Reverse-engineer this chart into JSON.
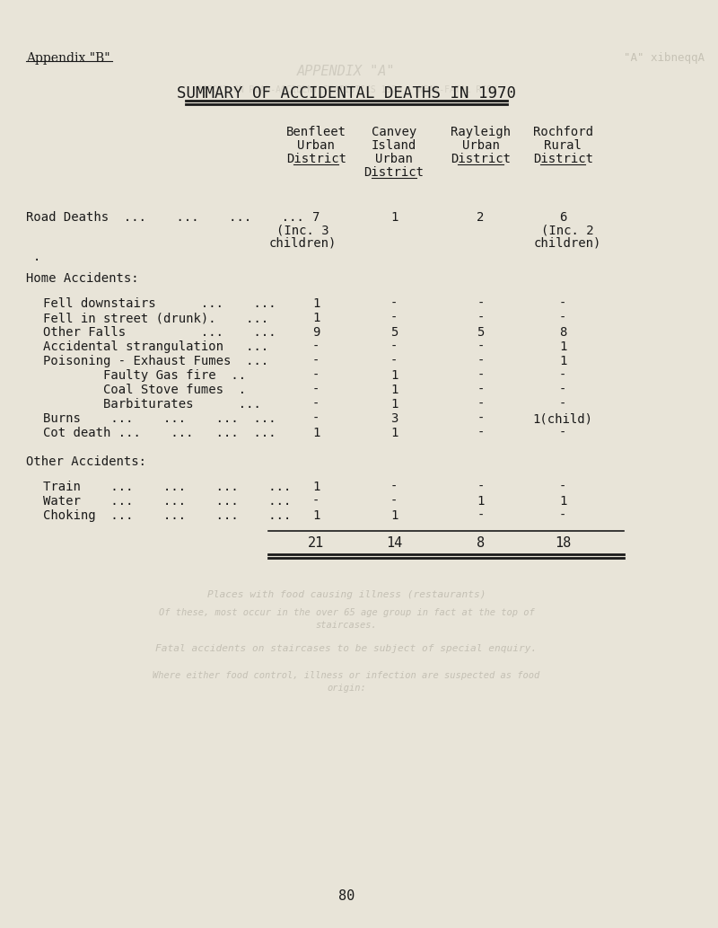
{
  "title": "SUMMARY OF ACCIDENTAL DEATHS IN 1970",
  "appendix_label": "Appendix \"B\"",
  "appendix_label_right": "\"A\" xibneqqA",
  "background_color": "#e8e4d8",
  "text_color": "#1a1a1a",
  "col_headers": [
    [
      "Benfleet",
      "Urban",
      "District"
    ],
    [
      "Canvey",
      "Island",
      "Urban",
      "District"
    ],
    [
      "Rayleigh",
      "Urban",
      "District"
    ],
    [
      "Rochford",
      "Rural",
      "District"
    ]
  ],
  "rows": [
    {
      "label": "Road Deaths  ...    ...    ...    ...",
      "indent": 0,
      "values": [
        "7",
        "1",
        "2",
        "6"
      ],
      "sub_values": [
        "(Inc. 3",
        "children)",
        "",
        "(Inc. 2",
        "children)"
      ]
    }
  ],
  "section_home": "Home Accidents:",
  "home_rows": [
    {
      "label": "Fell downstairs      ...    ...",
      "indent": 1,
      "values": [
        "1",
        "-",
        "-",
        "-"
      ]
    },
    {
      "label": "Fell in street (drunk).    ...",
      "indent": 1,
      "values": [
        "1",
        "-",
        "-",
        "-"
      ]
    },
    {
      "label": "Other Falls          ...    ...",
      "indent": 1,
      "values": [
        "9",
        "5",
        "5",
        "8"
      ]
    },
    {
      "label": "Accidental strangulation   ...",
      "indent": 1,
      "values": [
        "-",
        "-",
        "-",
        "1"
      ]
    },
    {
      "label": "Poisoning - Exhaust Fumes  ...",
      "indent": 1,
      "values": [
        "-",
        "-",
        "-",
        "1"
      ]
    },
    {
      "label": "Faulty Gas fire  ..",
      "indent": 2,
      "values": [
        "-",
        "1",
        "-",
        "-"
      ]
    },
    {
      "label": "Coal Stove fumes  .",
      "indent": 2,
      "values": [
        "-",
        "1",
        "-",
        "-"
      ]
    },
    {
      "label": "Barbiturates       ...",
      "indent": 2,
      "values": [
        "-",
        "1",
        "-",
        "-"
      ]
    },
    {
      "label": "Burns    ...    ...    ...    ...",
      "indent": 1,
      "values": [
        "-",
        "3",
        "-",
        "1(child)"
      ]
    },
    {
      "label": "Cot death ...    ...    ...    ...",
      "indent": 1,
      "values": [
        "1",
        "1",
        "-",
        "-"
      ]
    }
  ],
  "section_other": "Other Accidents:",
  "other_rows": [
    {
      "label": "Train    ...    ...    ...    ...",
      "indent": 1,
      "values": [
        "1",
        "-",
        "-",
        "-"
      ]
    },
    {
      "label": "Water    ...    ...    ...    ...",
      "indent": 1,
      "values": [
        "-",
        "-",
        "1",
        "1"
      ]
    },
    {
      "label": "Choking  ...    ...    ...    ...",
      "indent": 1,
      "values": [
        "1",
        "1",
        "-",
        "-"
      ]
    }
  ],
  "totals": [
    "21",
    "14",
    "8",
    "18"
  ],
  "page_number": "80",
  "font_family": "monospace"
}
